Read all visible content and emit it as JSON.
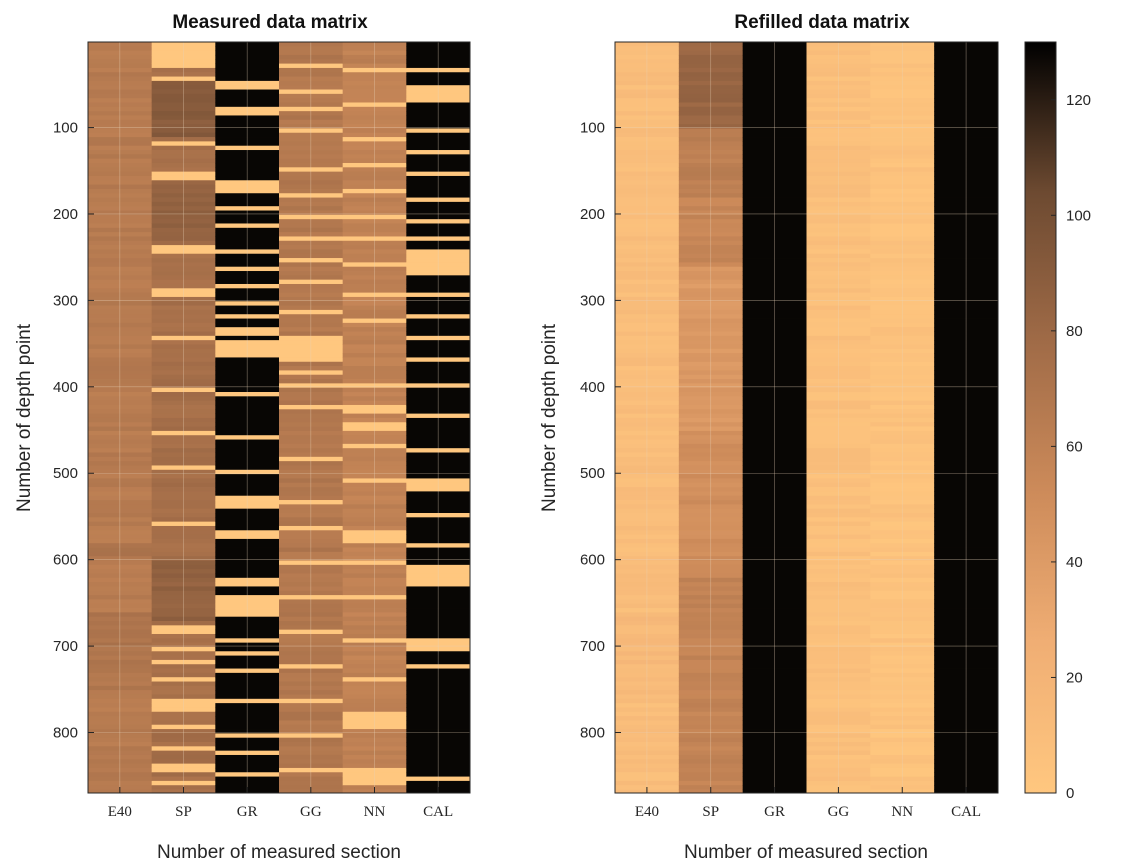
{
  "chart_data": [
    {
      "type": "heatmap",
      "title": "Measured data matrix",
      "xlabel": "Number of measured section",
      "ylabel": "Number of depth point",
      "categories": [
        "E40",
        "SP",
        "GR",
        "GG",
        "NN",
        "CAL"
      ],
      "yticks": [
        100,
        200,
        300,
        400,
        500,
        600,
        700,
        800
      ],
      "ylim": [
        1,
        870
      ],
      "grid": true,
      "columns": [
        {
          "name": "E40",
          "base": 65,
          "gaps": [],
          "variation": [
            [
              580,
              600,
              70
            ],
            [
              660,
              700,
              72
            ],
            [
              700,
              760,
              68
            ]
          ]
        },
        {
          "name": "SP",
          "base": 75,
          "gaps": [
            [
              1,
              30
            ],
            [
              38,
              42
            ],
            [
              115,
              120
            ],
            [
              150,
              160
            ],
            [
              235,
              245
            ],
            [
              285,
              292
            ],
            [
              340,
              345
            ],
            [
              400,
              405
            ],
            [
              450,
              455
            ],
            [
              490,
              495
            ],
            [
              555,
              560
            ],
            [
              675,
              685
            ],
            [
              700,
              705
            ],
            [
              715,
              720
            ],
            [
              735,
              740
            ],
            [
              760,
              775
            ],
            [
              790,
              795
            ],
            [
              815,
              820
            ],
            [
              835,
              845
            ],
            [
              855,
              860
            ]
          ],
          "variation": [
            [
              40,
              110,
              90
            ],
            [
              160,
              230,
              85
            ],
            [
              600,
              670,
              85
            ]
          ]
        },
        {
          "name": "GR",
          "base": 128,
          "gaps": [
            [
              45,
              55
            ],
            [
              75,
              82
            ],
            [
              120,
              126
            ],
            [
              160,
              175
            ],
            [
              190,
              195
            ],
            [
              210,
              215
            ],
            [
              240,
              245
            ],
            [
              260,
              265
            ],
            [
              280,
              285
            ],
            [
              300,
              305
            ],
            [
              315,
              320
            ],
            [
              330,
              340
            ],
            [
              345,
              365
            ],
            [
              405,
              410
            ],
            [
              455,
              460
            ],
            [
              495,
              500
            ],
            [
              525,
              540
            ],
            [
              565,
              575
            ],
            [
              620,
              630
            ],
            [
              640,
              665
            ],
            [
              690,
              695
            ],
            [
              705,
              710
            ],
            [
              725,
              730
            ],
            [
              760,
              765
            ],
            [
              800,
              805
            ],
            [
              820,
              825
            ],
            [
              845,
              850
            ]
          ],
          "variation": []
        },
        {
          "name": "GG",
          "base": 68,
          "gaps": [
            [
              25,
              30
            ],
            [
              55,
              60
            ],
            [
              75,
              80
            ],
            [
              100,
              105
            ],
            [
              145,
              150
            ],
            [
              175,
              180
            ],
            [
              200,
              205
            ],
            [
              225,
              230
            ],
            [
              250,
              255
            ],
            [
              275,
              280
            ],
            [
              310,
              315
            ],
            [
              340,
              370
            ],
            [
              380,
              385
            ],
            [
              395,
              400
            ],
            [
              420,
              425
            ],
            [
              480,
              485
            ],
            [
              530,
              535
            ],
            [
              560,
              565
            ],
            [
              600,
              605
            ],
            [
              640,
              645
            ],
            [
              680,
              685
            ],
            [
              720,
              725
            ],
            [
              760,
              765
            ],
            [
              800,
              805
            ],
            [
              840,
              845
            ]
          ],
          "variation": []
        },
        {
          "name": "NN",
          "base": 60,
          "gaps": [
            [
              30,
              35
            ],
            [
              70,
              75
            ],
            [
              110,
              115
            ],
            [
              140,
              145
            ],
            [
              170,
              175
            ],
            [
              200,
              205
            ],
            [
              225,
              230
            ],
            [
              255,
              260
            ],
            [
              290,
              295
            ],
            [
              320,
              325
            ],
            [
              395,
              400
            ],
            [
              420,
              430
            ],
            [
              440,
              450
            ],
            [
              465,
              470
            ],
            [
              505,
              510
            ],
            [
              565,
              580
            ],
            [
              600,
              605
            ],
            [
              640,
              645
            ],
            [
              690,
              695
            ],
            [
              735,
              740
            ],
            [
              775,
              795
            ],
            [
              840,
              860
            ]
          ],
          "variation": []
        },
        {
          "name": "CAL",
          "base": 128,
          "gaps": [
            [
              30,
              35
            ],
            [
              50,
              70
            ],
            [
              100,
              105
            ],
            [
              125,
              130
            ],
            [
              150,
              155
            ],
            [
              180,
              185
            ],
            [
              205,
              210
            ],
            [
              225,
              230
            ],
            [
              240,
              270
            ],
            [
              290,
              295
            ],
            [
              315,
              320
            ],
            [
              340,
              345
            ],
            [
              365,
              370
            ],
            [
              395,
              400
            ],
            [
              430,
              435
            ],
            [
              470,
              475
            ],
            [
              505,
              520
            ],
            [
              545,
              550
            ],
            [
              580,
              585
            ],
            [
              605,
              630
            ],
            [
              690,
              705
            ],
            [
              720,
              725
            ],
            [
              850,
              855
            ]
          ],
          "variation": []
        }
      ]
    },
    {
      "type": "heatmap",
      "title": "Refilled data matrix",
      "xlabel": "Number of measured section",
      "ylabel": "Number of depth point",
      "categories": [
        "E40",
        "SP",
        "GR",
        "GG",
        "NN",
        "CAL"
      ],
      "yticks": [
        100,
        200,
        300,
        400,
        500,
        600,
        700,
        800
      ],
      "ylim": [
        1,
        870
      ],
      "grid": true,
      "columns": [
        {
          "name": "E40",
          "base": 10,
          "variation": [
            [
              660,
              760,
              14
            ]
          ]
        },
        {
          "name": "SP",
          "base": 48,
          "variation": [
            [
              1,
              100,
              82
            ],
            [
              100,
              180,
              62
            ],
            [
              180,
              260,
              56
            ],
            [
              260,
              450,
              42
            ],
            [
              450,
              620,
              50
            ],
            [
              620,
              870,
              58
            ]
          ]
        },
        {
          "name": "GR",
          "base": 128,
          "variation": []
        },
        {
          "name": "GG",
          "base": 8,
          "variation": []
        },
        {
          "name": "NN",
          "base": 5,
          "variation": []
        },
        {
          "name": "CAL",
          "base": 128,
          "variation": []
        }
      ]
    }
  ],
  "colorbar": {
    "min": 0,
    "max": 130,
    "ticks": [
      0,
      20,
      40,
      60,
      80,
      100,
      120
    ]
  }
}
